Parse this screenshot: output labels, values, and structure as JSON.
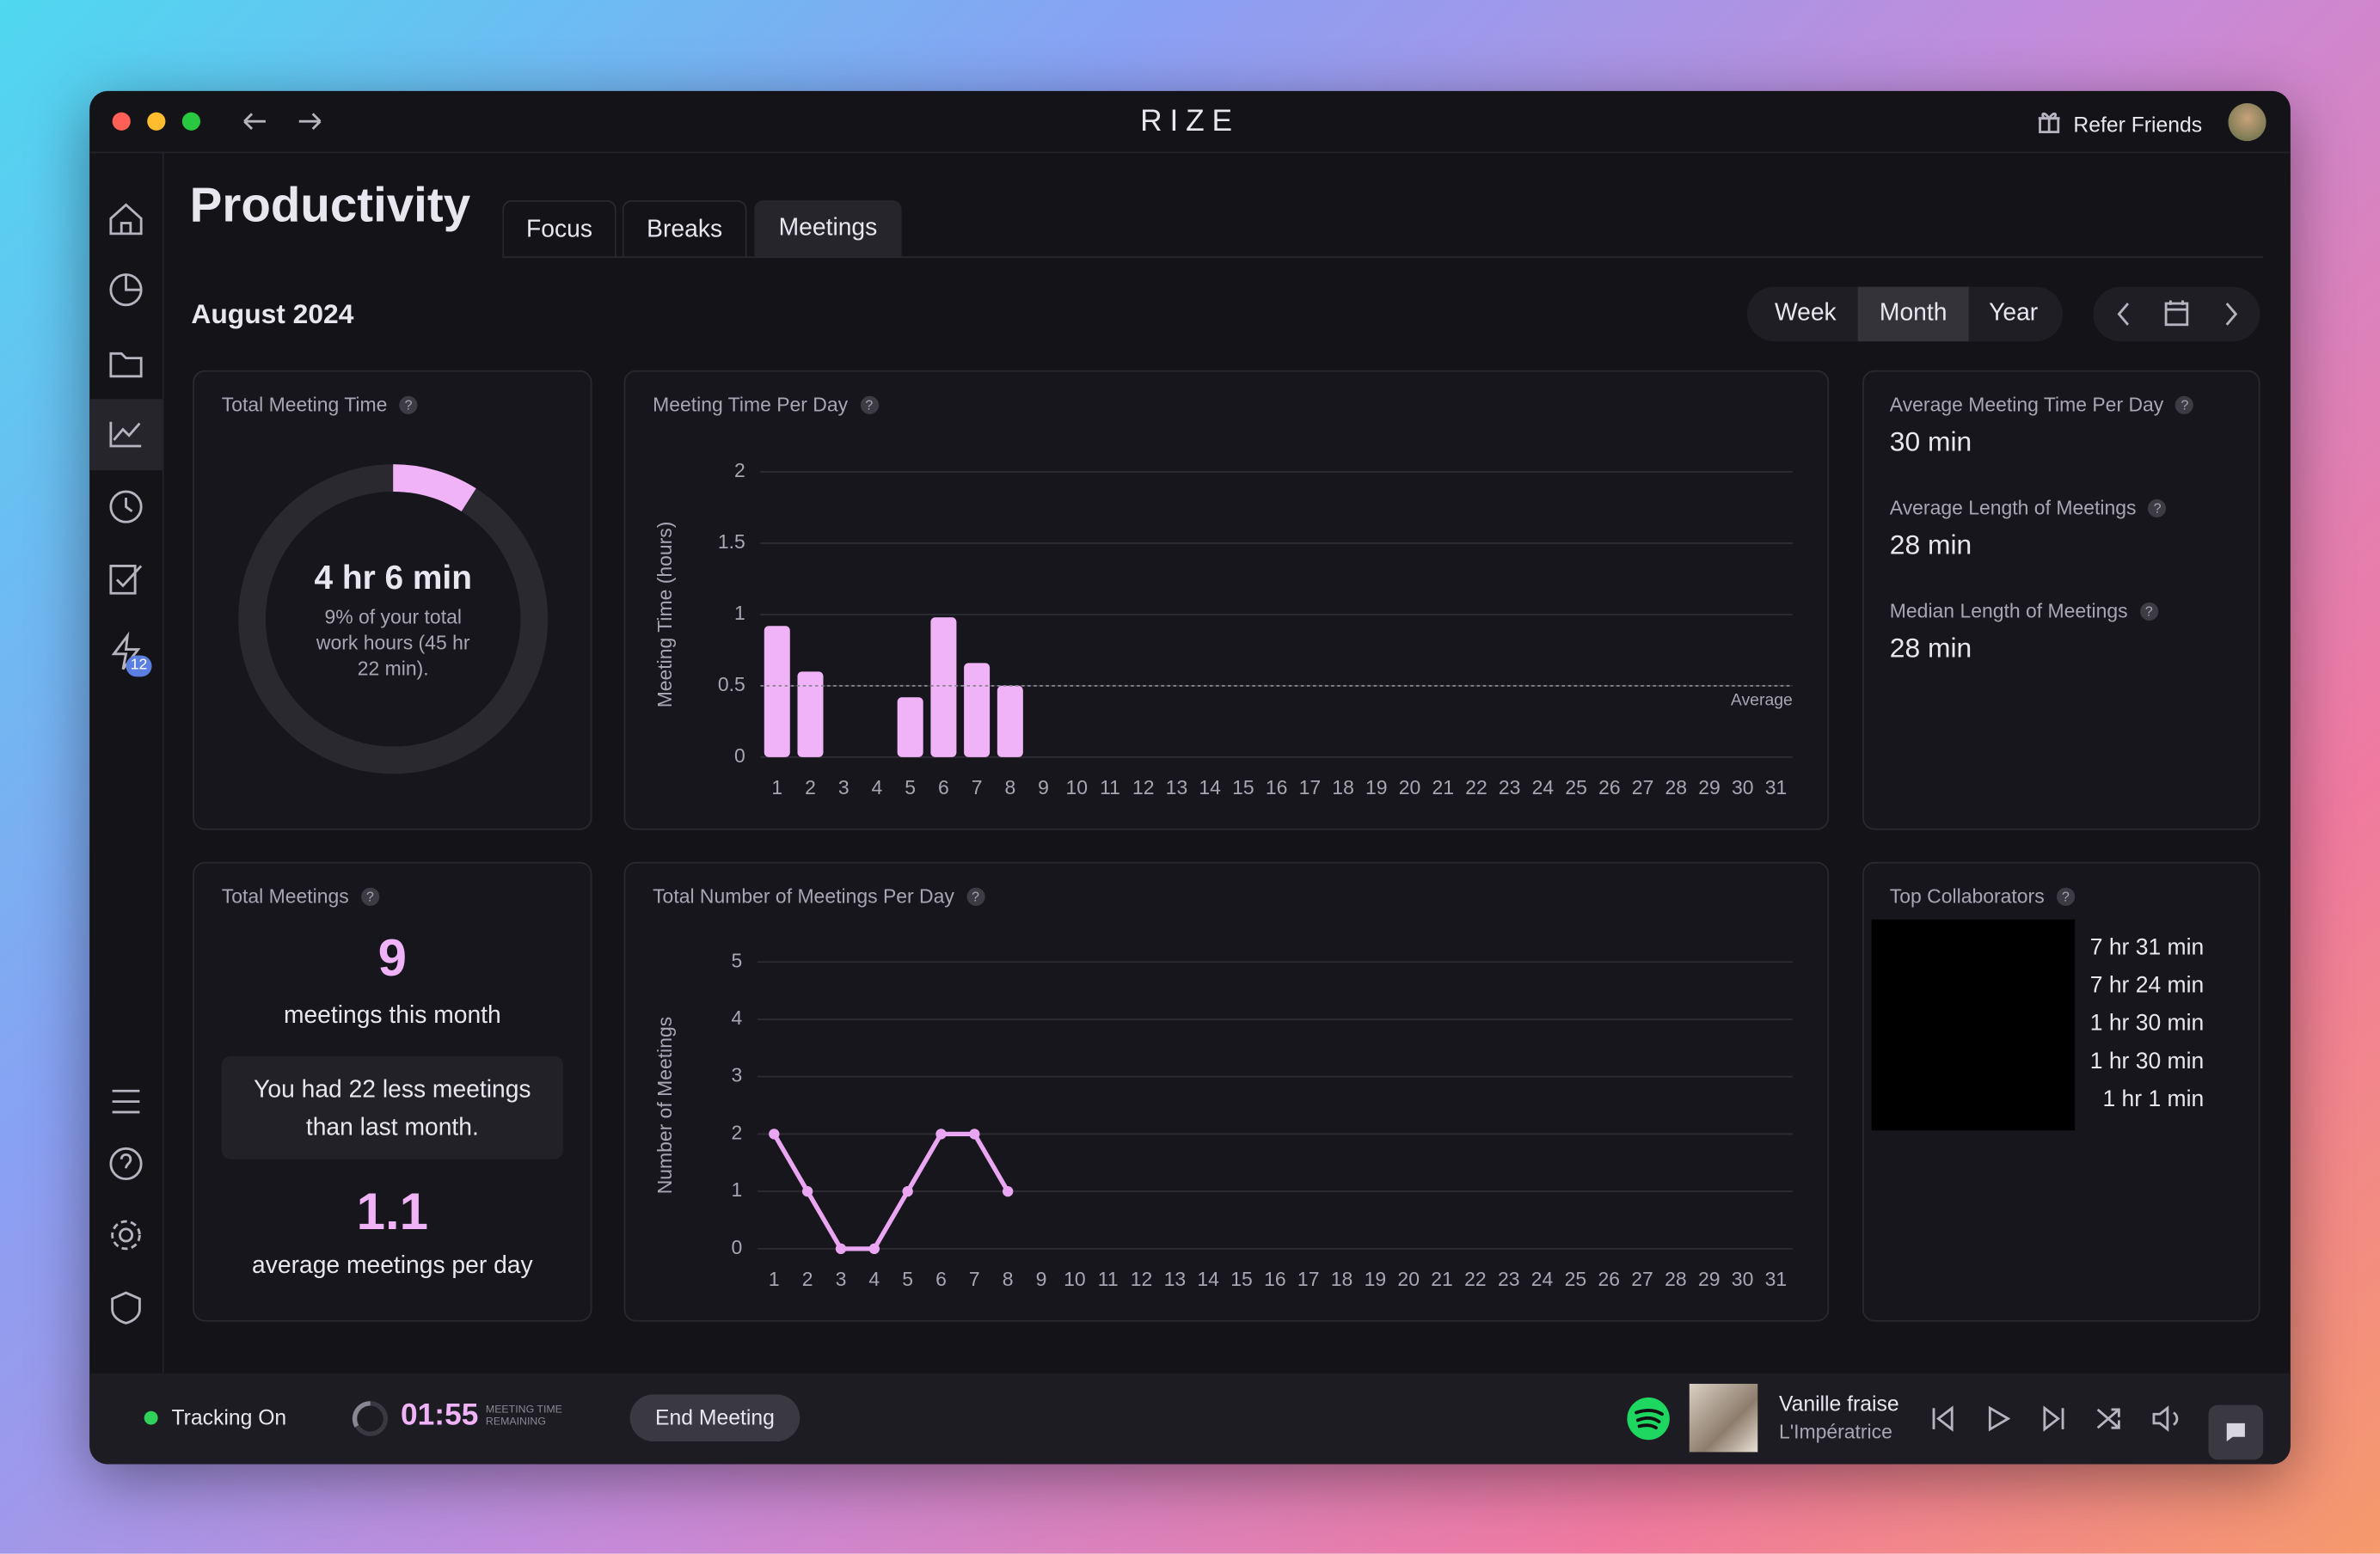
{
  "window": {
    "app_name": "RIZE",
    "refer": "Refer Friends"
  },
  "sidebar": {
    "badge": "12"
  },
  "page": {
    "title": "Productivity",
    "tabs": [
      "Focus",
      "Breaks",
      "Meetings"
    ],
    "period": "August 2024",
    "ranges": [
      "Week",
      "Month",
      "Year"
    ],
    "help": "?"
  },
  "total_meeting_time": {
    "title": "Total Meeting Time",
    "value": "4 hr 6 min",
    "note": "9% of your total work hours (45 hr 22 min).",
    "percent": 9,
    "color": "#f0b3f7"
  },
  "stats": [
    {
      "label": "Average Meeting Time Per Day",
      "value": "30 min"
    },
    {
      "label": "Average Length of Meetings",
      "value": "28 min"
    },
    {
      "label": "Median Length of Meetings",
      "value": "28 min"
    }
  ],
  "total_meetings": {
    "title": "Total Meetings",
    "count": 9,
    "count_label": "meetings this month",
    "comparison": "You had 22 less meetings than last month.",
    "average": 1.1,
    "average_label": "average meetings per day"
  },
  "top_collaborators": {
    "title": "Top Collaborators",
    "times": [
      "7 hr 31 min",
      "7 hr 24 min",
      "1 hr 30 min",
      "1 hr 30 min",
      "1 hr 1 min"
    ]
  },
  "footer": {
    "tracking": "Tracking On",
    "timer": "01:55",
    "timer_label": "MEETING TIME REMAINING",
    "end": "End Meeting",
    "track": "Vanille fraise",
    "artist": "L'Impératrice"
  },
  "chart_data": [
    {
      "type": "bar",
      "title": "Meeting Time Per Day",
      "y_label": "Meeting Time (hours)",
      "color": "#f0b3f7",
      "categories": [
        "1",
        "2",
        "3",
        "4",
        "5",
        "6",
        "7",
        "8",
        "9",
        "10",
        "11",
        "12",
        "13",
        "14",
        "15",
        "16",
        "17",
        "18",
        "19",
        "20",
        "21",
        "22",
        "23",
        "24",
        "25",
        "26",
        "27",
        "28",
        "29",
        "30",
        "31"
      ],
      "values": [
        0.92,
        0.6,
        0,
        0,
        0.42,
        0.98,
        0.66,
        0.5,
        null,
        null,
        null,
        null,
        null,
        null,
        null,
        null,
        null,
        null,
        null,
        null,
        null,
        null,
        null,
        null,
        null,
        null,
        null,
        null,
        null,
        null,
        null
      ],
      "ylim": [
        0,
        2
      ],
      "yticks": [
        0,
        0.5,
        1,
        1.5,
        2
      ],
      "grid": true,
      "average": 0.5,
      "average_label": "Average"
    },
    {
      "type": "line",
      "title": "Total Number of Meetings Per Day",
      "y_label": "Number of Meetings",
      "color": "#eaa6f3",
      "categories": [
        "1",
        "2",
        "3",
        "4",
        "5",
        "6",
        "7",
        "8",
        "9",
        "10",
        "11",
        "12",
        "13",
        "14",
        "15",
        "16",
        "17",
        "18",
        "19",
        "20",
        "21",
        "22",
        "23",
        "24",
        "25",
        "26",
        "27",
        "28",
        "29",
        "30",
        "31"
      ],
      "values": [
        2,
        1,
        0,
        0,
        1,
        2,
        2,
        1,
        null,
        null,
        null,
        null,
        null,
        null,
        null,
        null,
        null,
        null,
        null,
        null,
        null,
        null,
        null,
        null,
        null,
        null,
        null,
        null,
        null,
        null,
        null
      ],
      "ylim": [
        0,
        5
      ],
      "yticks": [
        0,
        1,
        2,
        3,
        4,
        5
      ],
      "grid": true
    }
  ]
}
